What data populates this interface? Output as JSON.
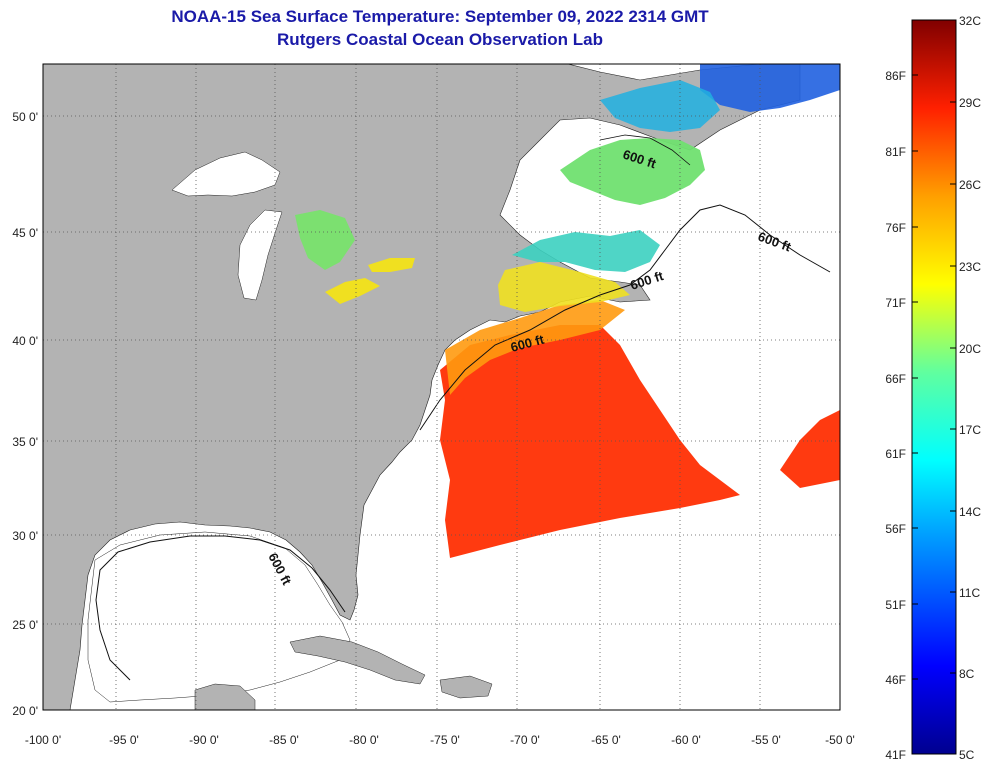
{
  "title": "NOAA-15 Sea Surface Temperature:  September 09, 2022 2314 GMT",
  "subtitle": "Rutgers Coastal Ocean Observation Lab",
  "colors": {
    "land": "#b3b3b3",
    "no_data": "#ffffff",
    "title": "#1a1aa8"
  },
  "map": {
    "lon_ticks": [
      "-100 0'",
      "-95 0'",
      "-90 0'",
      "-85 0'",
      "-80 0'",
      "-75 0'",
      "-70 0'",
      "-65 0'",
      "-60 0'",
      "-55 0'",
      "-50 0'"
    ],
    "lat_ticks": [
      "50 0'",
      "45 0'",
      "40 0'",
      "35 0'",
      "30 0'",
      "25 0'",
      "20 0'"
    ],
    "contour_labels": [
      "600 ft",
      "600 ft",
      "600 ft",
      "600 ft",
      "600 ft"
    ]
  },
  "colorbar": {
    "fahrenheit": [
      "86F",
      "81F",
      "76F",
      "71F",
      "66F",
      "61F",
      "56F",
      "51F",
      "46F",
      "41F"
    ],
    "celsius": [
      "32C",
      "29C",
      "26C",
      "23C",
      "20C",
      "17C",
      "14C",
      "11C",
      "8C",
      "5C"
    ]
  }
}
